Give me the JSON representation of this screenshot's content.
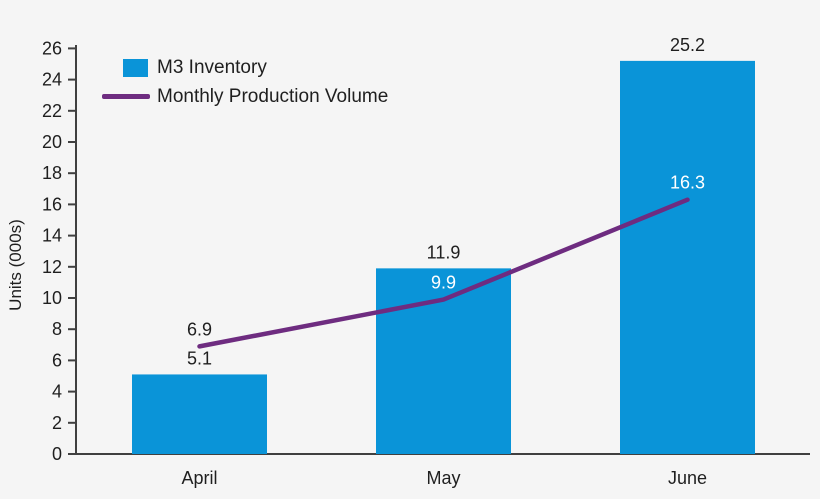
{
  "chart_data": {
    "type": "combo",
    "categories": [
      "April",
      "May",
      "June"
    ],
    "series": [
      {
        "name": "M3 Inventory",
        "type": "bar",
        "values": [
          5.1,
          11.9,
          25.2
        ],
        "color": "#0a94d8"
      },
      {
        "name": "Monthly Production Volume",
        "type": "line",
        "values": [
          6.9,
          9.9,
          16.3
        ],
        "color": "#6e2c80"
      }
    ],
    "ylabel": "Units (000s)",
    "ylim": [
      0,
      26
    ],
    "ytick_step": 2,
    "grid": false,
    "legend_position": "top-left",
    "data_labels": true
  },
  "colors": {
    "background": "#f5f5f5",
    "axis": "#404040",
    "text": "#1f1f1f",
    "label_on_bar": "#ffffff"
  }
}
